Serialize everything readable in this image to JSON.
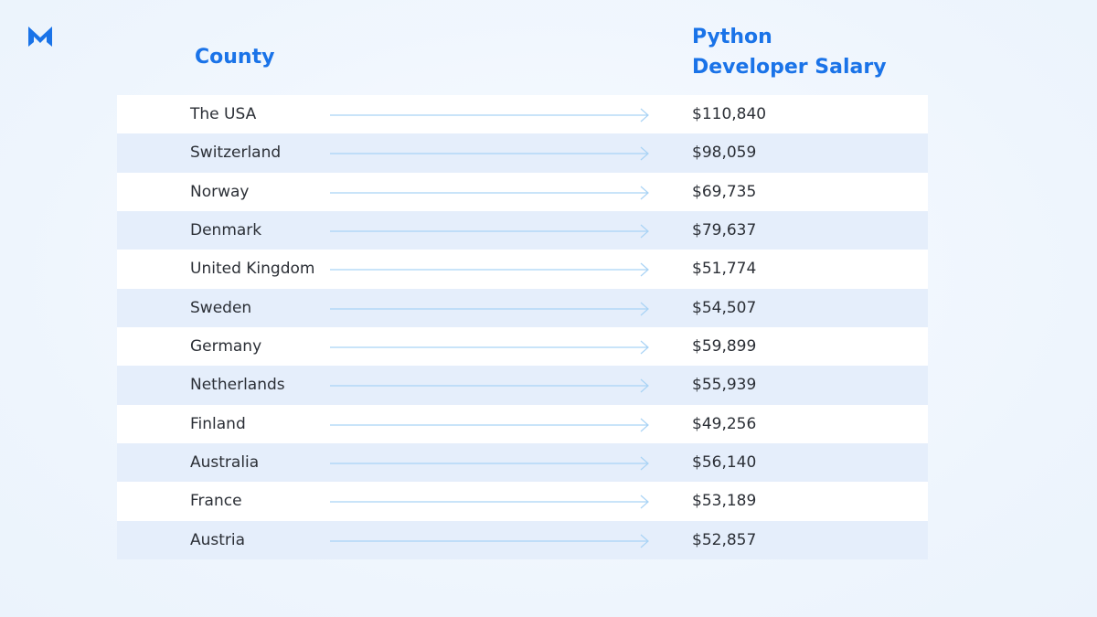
{
  "table": {
    "header": [
      "County",
      "Python Developer Salary"
    ],
    "rows": [
      [
        "The USA",
        "$110,840"
      ],
      [
        "Switzerland",
        "$98,059"
      ],
      [
        "Norway",
        "$69,735"
      ],
      [
        "Denmark",
        "$79,637"
      ],
      [
        "United Kingdom",
        "$51,774"
      ],
      [
        "Sweden",
        "$54,507"
      ],
      [
        "Germany",
        "$59,899"
      ],
      [
        "Netherlands",
        "$55,939"
      ],
      [
        "Finland",
        "$49,256"
      ],
      [
        "Australia",
        "$56,140"
      ],
      [
        "France",
        "$53,189"
      ],
      [
        "Austria",
        "$52,857"
      ]
    ]
  }
}
